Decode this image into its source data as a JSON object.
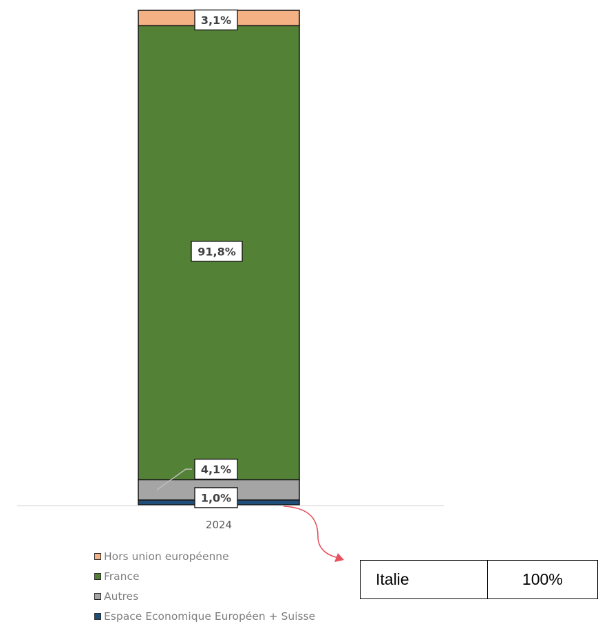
{
  "chart_data": {
    "type": "bar",
    "stacked": true,
    "categories": [
      "2024"
    ],
    "series": [
      {
        "name": "Espace Economique Européen + Suisse",
        "values": [
          1.0
        ],
        "label": "1,0%",
        "color": "#1f4e79"
      },
      {
        "name": "Autres",
        "values": [
          4.1
        ],
        "label": "4,1%",
        "color": "#a5a5a5"
      },
      {
        "name": "France",
        "values": [
          91.8
        ],
        "label": "91,8%",
        "color": "#538135"
      },
      {
        "name": "Hors union européenne",
        "values": [
          3.1
        ],
        "label": "3,1%",
        "color": "#f4b183"
      }
    ],
    "ylim": [
      0,
      100
    ],
    "legend_position": "bottom-left",
    "legend_order": [
      "Hors union européenne",
      "France",
      "Autres",
      "Espace Economique Européen + Suisse"
    ],
    "detail_table": {
      "rows": [
        [
          "Italie",
          "100%"
        ]
      ]
    },
    "arrow_color": "#e8525f"
  }
}
